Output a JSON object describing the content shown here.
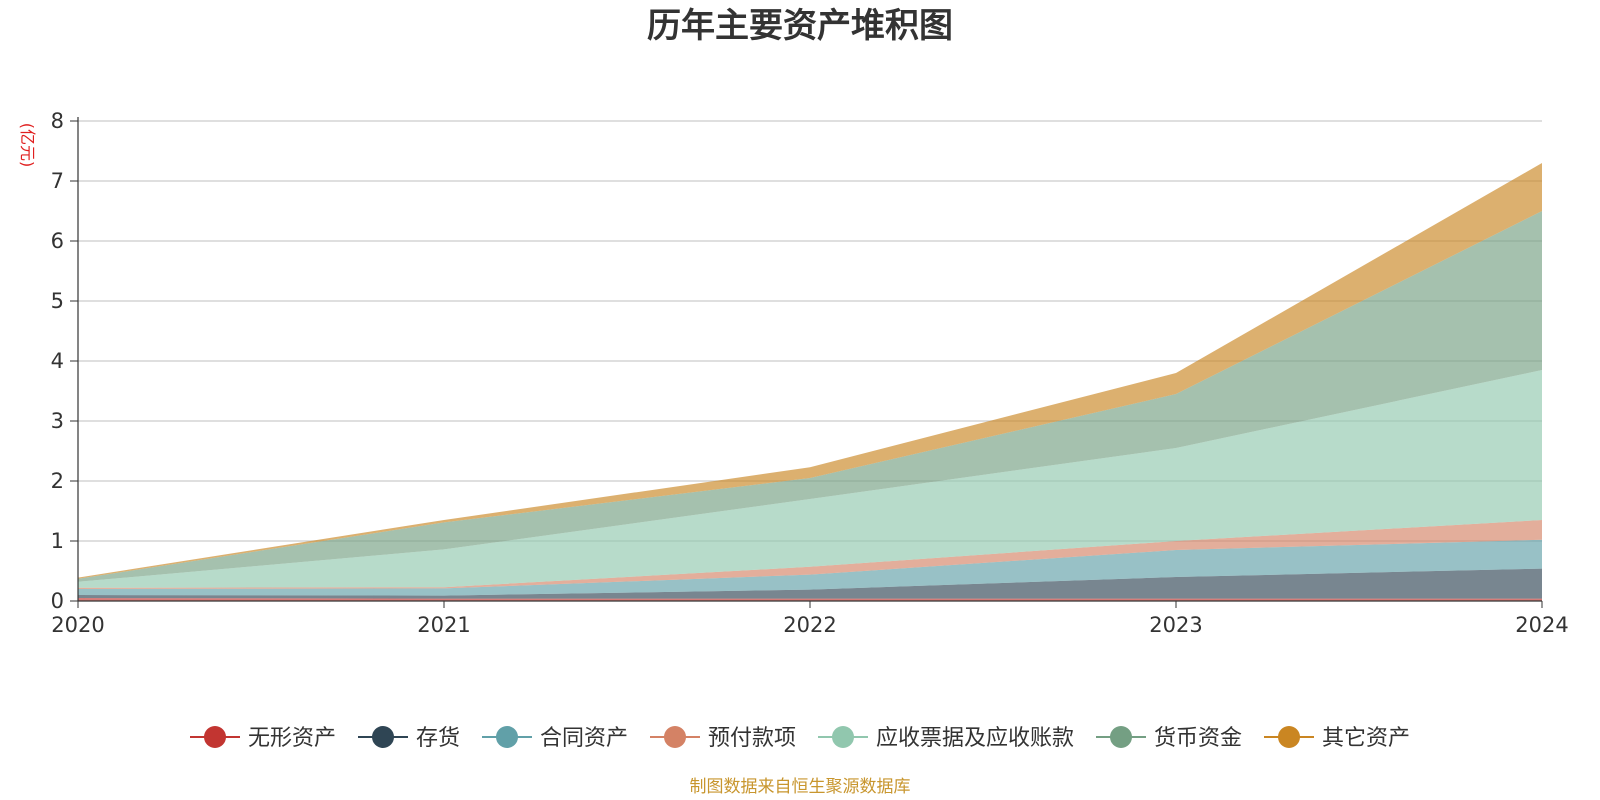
{
  "chart_data": {
    "type": "area",
    "stacked": true,
    "title": "历年主要资产堆积图",
    "ylabel": "(亿元)",
    "xlabel": "",
    "x": [
      "2020",
      "2021",
      "2022",
      "2023",
      "2024"
    ],
    "ylim": [
      0,
      8
    ],
    "yticks": [
      "0",
      "1",
      "2",
      "3",
      "4",
      "5",
      "6",
      "7",
      "8"
    ],
    "grid": true,
    "legend_position": "bottom",
    "series": [
      {
        "name": "无形资产",
        "color": "#c23531",
        "values": [
          0.05,
          0.04,
          0.04,
          0.04,
          0.04
        ]
      },
      {
        "name": "存货",
        "color": "#2f4554",
        "values": [
          0.05,
          0.05,
          0.15,
          0.36,
          0.5
        ]
      },
      {
        "name": "合同资产",
        "color": "#61a0a8",
        "values": [
          0.1,
          0.12,
          0.25,
          0.45,
          0.48
        ]
      },
      {
        "name": "预付款项",
        "color": "#d48265",
        "values": [
          0.02,
          0.02,
          0.13,
          0.15,
          0.33
        ]
      },
      {
        "name": "应收票据及应收账款",
        "color": "#91c7ae",
        "values": [
          0.1,
          0.63,
          1.13,
          1.55,
          2.5
        ]
      },
      {
        "name": "货币资金",
        "color": "#749f83",
        "values": [
          0.05,
          0.45,
          0.35,
          0.9,
          2.65
        ]
      },
      {
        "name": "其它资产",
        "color": "#ca8622",
        "values": [
          0.02,
          0.04,
          0.18,
          0.35,
          0.8
        ]
      }
    ]
  },
  "footer": {
    "source": "制图数据来自恒生聚源数据库"
  }
}
